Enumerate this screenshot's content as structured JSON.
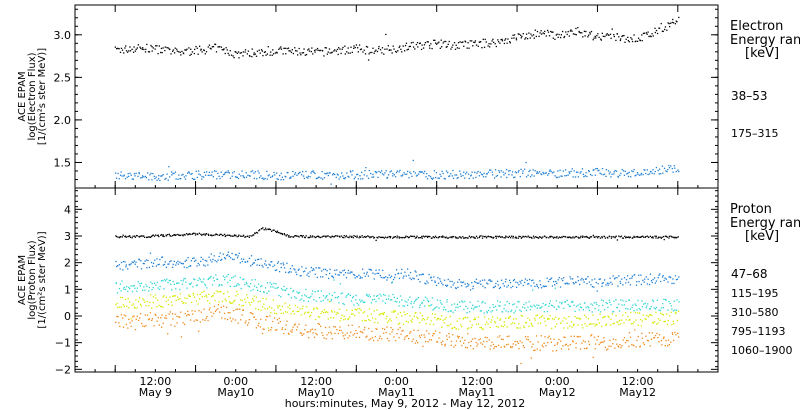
{
  "chart_data": [
    {
      "type": "scatter",
      "panel": "electron",
      "ylabel_lines": [
        "ACE EPAM",
        "log(Electron Flux)",
        "[1/(cm²s ster MeV)]"
      ],
      "legend_title": [
        "Electron",
        "Energy ranges",
        "[keV]"
      ],
      "ylim": [
        1.2,
        3.35
      ],
      "yticks": [
        1.5,
        2.0,
        2.5,
        3.0
      ],
      "ytick_labels": [
        "1.5",
        "2.0",
        "2.5",
        "3.0"
      ],
      "series": [
        {
          "name": "38-53",
          "color": "#000000",
          "x": [
            0,
            3,
            6,
            9,
            12,
            15,
            18,
            21,
            24,
            27,
            30,
            33,
            36,
            39,
            42,
            45,
            48,
            51,
            54,
            57,
            60,
            63,
            66,
            69,
            72,
            75,
            78,
            81,
            84
          ],
          "y": [
            2.82,
            2.85,
            2.84,
            2.8,
            2.82,
            2.85,
            2.78,
            2.8,
            2.82,
            2.81,
            2.8,
            2.82,
            2.84,
            2.82,
            2.85,
            2.88,
            2.9,
            2.88,
            2.9,
            2.92,
            2.98,
            3.02,
            3.0,
            3.05,
            2.98,
            2.97,
            2.96,
            3.05,
            3.18
          ]
        },
        {
          "name": "175-315",
          "color": "#1f7fd4",
          "x": [
            0,
            6,
            12,
            18,
            24,
            30,
            36,
            42,
            48,
            54,
            60,
            66,
            72,
            78,
            84
          ],
          "y": [
            1.35,
            1.34,
            1.36,
            1.37,
            1.35,
            1.36,
            1.36,
            1.37,
            1.36,
            1.37,
            1.38,
            1.38,
            1.39,
            1.38,
            1.45
          ]
        }
      ]
    },
    {
      "type": "scatter",
      "panel": "proton",
      "ylabel_lines": [
        "ACE EPAM",
        "log(Proton Flux)",
        "[1/(cm²s ster MeV)]"
      ],
      "legend_title": [
        "Proton",
        "Energy ranges",
        "[keV]"
      ],
      "ylim": [
        -2.1,
        4.8
      ],
      "yticks": [
        -2,
        -1,
        0,
        1,
        2,
        3,
        4
      ],
      "ytick_labels": [
        "−2",
        "−1",
        "0",
        "1",
        "2",
        "3",
        "4"
      ],
      "series": [
        {
          "name": "47-68",
          "color": "#000000",
          "x": [
            0,
            4,
            8,
            12,
            16,
            20,
            22,
            24,
            26,
            28,
            32,
            36,
            40,
            44,
            48,
            52,
            56,
            60,
            64,
            68,
            72,
            76,
            80,
            84
          ],
          "y": [
            3.0,
            3.0,
            3.05,
            3.1,
            3.05,
            3.0,
            3.3,
            3.2,
            3.0,
            3.0,
            3.0,
            3.0,
            2.98,
            2.98,
            2.98,
            2.98,
            2.98,
            2.98,
            2.98,
            2.98,
            2.98,
            2.98,
            2.98,
            2.98
          ]
        },
        {
          "name": "115-195",
          "color": "#1f7fd4",
          "x": [
            0,
            4,
            8,
            12,
            16,
            20,
            24,
            28,
            32,
            36,
            40,
            44,
            48,
            52,
            56,
            60,
            64,
            68,
            72,
            76,
            80,
            84
          ],
          "y": [
            1.9,
            2.0,
            2.05,
            2.0,
            2.3,
            2.1,
            1.9,
            1.7,
            1.6,
            1.6,
            1.55,
            1.6,
            1.3,
            1.2,
            1.2,
            1.25,
            1.25,
            1.3,
            1.3,
            1.35,
            1.4,
            1.45
          ]
        },
        {
          "name": "310-580",
          "color": "#2fd6d0",
          "x": [
            0,
            4,
            8,
            12,
            16,
            20,
            24,
            28,
            32,
            36,
            40,
            44,
            48,
            52,
            56,
            60,
            64,
            68,
            72,
            76,
            80,
            84
          ],
          "y": [
            1.1,
            1.15,
            1.2,
            1.25,
            1.4,
            1.2,
            1.0,
            0.8,
            0.7,
            0.65,
            0.65,
            0.6,
            0.45,
            0.35,
            0.35,
            0.38,
            0.38,
            0.38,
            0.4,
            0.4,
            0.42,
            0.45
          ]
        },
        {
          "name": "795-1193",
          "color": "#d4e800",
          "x": [
            0,
            4,
            8,
            12,
            16,
            20,
            24,
            28,
            32,
            36,
            40,
            44,
            48,
            52,
            56,
            60,
            64,
            68,
            72,
            76,
            80,
            84
          ],
          "y": [
            0.5,
            0.55,
            0.6,
            0.7,
            0.8,
            0.6,
            0.35,
            0.15,
            0.1,
            0.05,
            0.0,
            -0.05,
            -0.15,
            -0.25,
            -0.25,
            -0.2,
            -0.2,
            -0.2,
            -0.15,
            -0.1,
            -0.1,
            -0.05
          ]
        },
        {
          "name": "1060-1900",
          "color": "#f08a1a",
          "x": [
            0,
            4,
            8,
            12,
            16,
            20,
            24,
            28,
            32,
            36,
            40,
            44,
            48,
            52,
            56,
            60,
            64,
            68,
            72,
            76,
            80,
            84
          ],
          "y": [
            -0.2,
            -0.15,
            -0.1,
            0.0,
            0.2,
            -0.1,
            -0.3,
            -0.5,
            -0.55,
            -0.6,
            -0.65,
            -0.7,
            -0.8,
            -0.9,
            -0.95,
            -1.0,
            -1.0,
            -1.0,
            -0.95,
            -0.9,
            -0.85,
            -0.8
          ]
        }
      ]
    }
  ],
  "time_axis": {
    "xlim": [
      -6,
      90
    ],
    "ticks": [
      0,
      12,
      24,
      36,
      48,
      60,
      72,
      84
    ],
    "tick_top": [
      "12:00",
      "0:00",
      "12:00",
      "0:00",
      "12:00",
      "0:00",
      "12:00"
    ],
    "tick_bottom": [
      "May 9",
      "May10",
      "May10",
      "May11",
      "May11",
      "May12",
      "May12"
    ],
    "tick_positions": [
      6,
      18,
      30,
      42,
      54,
      66,
      78
    ],
    "xlabel": "hours:minutes, May  9, 2012 - May 12, 2012"
  }
}
